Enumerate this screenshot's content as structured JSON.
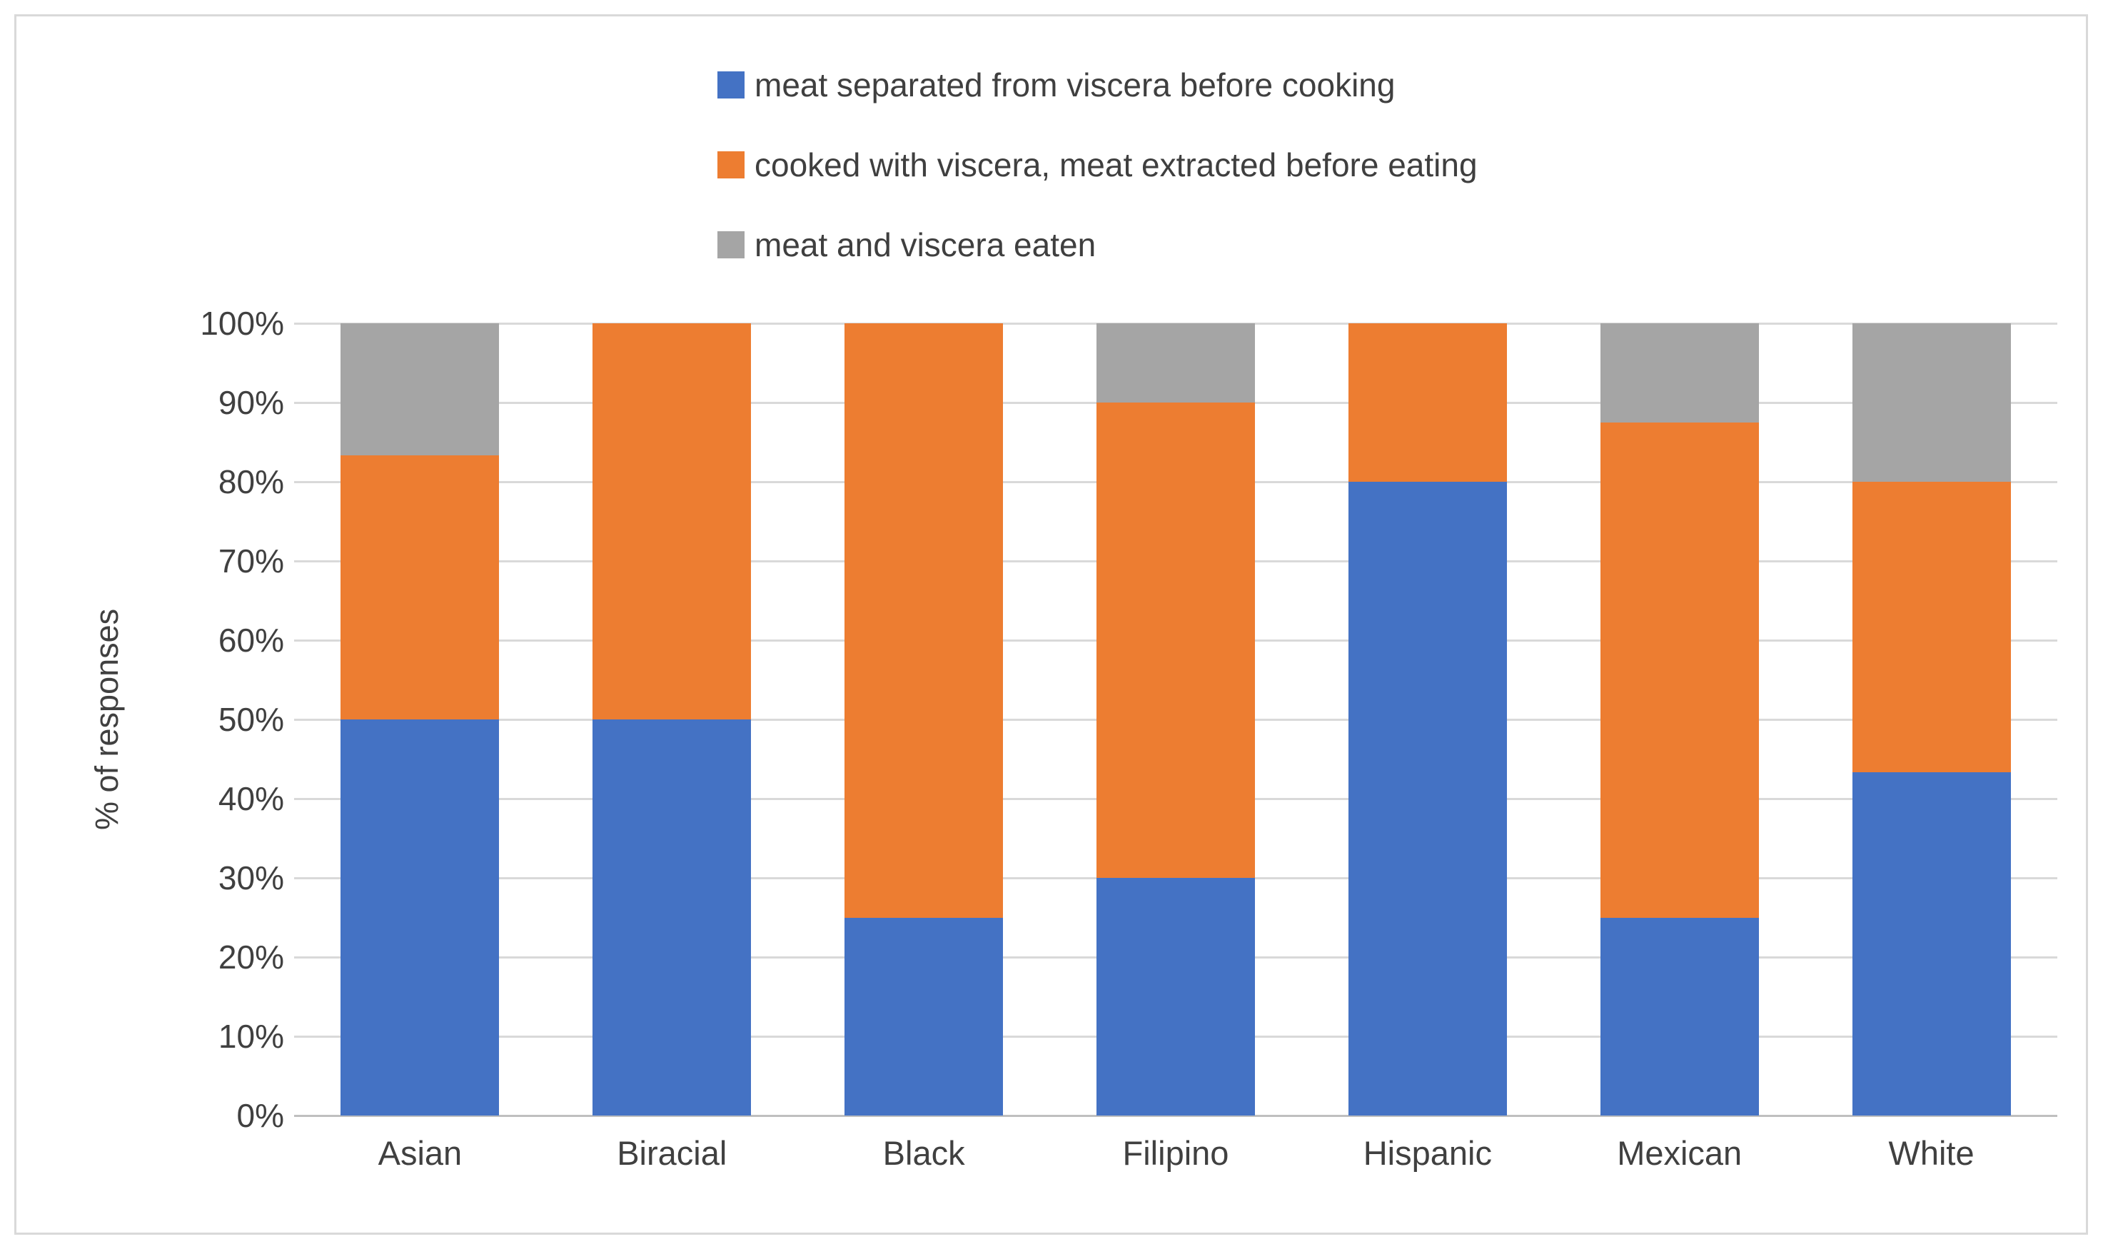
{
  "figure": {
    "background_color": "#ffffff",
    "border_color": "#d9d9d9"
  },
  "chart_data": {
    "type": "bar",
    "stacked": true,
    "units": "percent",
    "title": "",
    "xlabel": "",
    "ylabel": "% of responses",
    "ylim": [
      0,
      100
    ],
    "ytick_step": 10,
    "ytick_labels": [
      "0%",
      "10%",
      "20%",
      "30%",
      "40%",
      "50%",
      "60%",
      "70%",
      "80%",
      "90%",
      "100%"
    ],
    "grid": true,
    "gridline_color": "#d9d9d9",
    "axis_line_color": "#bfbfbf",
    "axis_text_color": "#404040",
    "legend_position": "top",
    "categories": [
      "Asian",
      "Biracial",
      "Black",
      "Filipino",
      "Hispanic",
      "Mexican",
      "White"
    ],
    "series": [
      {
        "name": "meat separated from viscera before cooking",
        "color": "#4472c4",
        "values": [
          50,
          50,
          25,
          30,
          80,
          25,
          43.3
        ]
      },
      {
        "name": "cooked with viscera, meat extracted before eating",
        "color": "#ed7d31",
        "values": [
          33.3,
          50,
          75,
          60,
          20,
          62.5,
          36.7
        ]
      },
      {
        "name": "meat and viscera eaten",
        "color": "#a5a5a5",
        "values": [
          16.7,
          0,
          0,
          10,
          0,
          12.5,
          20
        ]
      }
    ]
  }
}
